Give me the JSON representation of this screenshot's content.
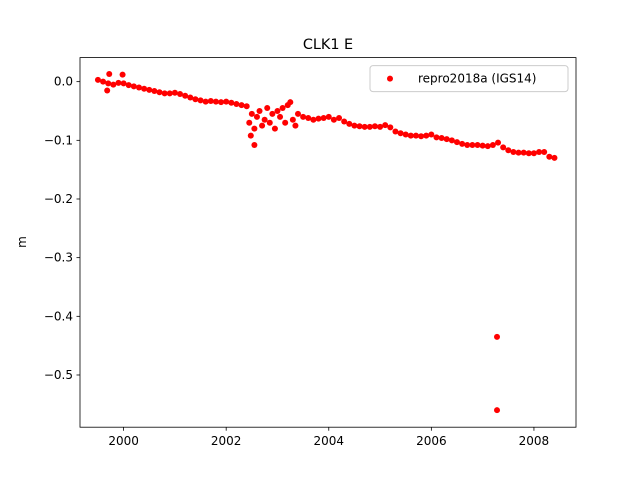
{
  "chart_data": {
    "type": "scatter",
    "title": "CLK1 E",
    "y_label": "m",
    "xlim": [
      1999.15,
      2008.82
    ],
    "ylim": [
      -0.589,
      0.041
    ],
    "xticks": [
      2000,
      2002,
      2004,
      2006,
      2008
    ],
    "yticks": [
      {
        "value": 0.0,
        "label": "0.0"
      },
      {
        "value": -0.1,
        "label": "−0.1"
      },
      {
        "value": -0.2,
        "label": "−0.2"
      },
      {
        "value": -0.3,
        "label": "−0.3"
      },
      {
        "value": -0.4,
        "label": "−0.4"
      },
      {
        "value": -0.5,
        "label": "−0.5"
      }
    ],
    "legend": "upper right",
    "grid": false,
    "series": [
      {
        "name": "repro2018a (IGS14)",
        "color": "#ff0000",
        "x": [
          1999.5,
          1999.6,
          1999.7,
          1999.8,
          1999.9,
          2000.0,
          2000.1,
          2000.2,
          2000.3,
          2000.4,
          2000.5,
          2000.6,
          2000.7,
          2000.8,
          2000.9,
          2001.0,
          2001.1,
          2001.2,
          2001.3,
          2001.4,
          2001.5,
          2001.6,
          2001.7,
          2001.8,
          2001.9,
          2002.0,
          2002.1,
          2002.2,
          2002.3,
          2002.4,
          2002.45,
          2002.5,
          2002.55,
          2002.6,
          2002.65,
          2002.7,
          2002.75,
          2002.8,
          2002.85,
          2002.9,
          2002.95,
          2003.0,
          2003.05,
          2003.1,
          2003.15,
          2003.2,
          2003.25,
          2003.3,
          2003.35,
          2003.4,
          2003.5,
          2003.6,
          2003.7,
          2003.8,
          2003.9,
          2004.0,
          2004.1,
          2004.2,
          2004.3,
          2004.4,
          2004.5,
          2004.6,
          2004.7,
          2004.8,
          2004.9,
          2005.0,
          2005.1,
          2005.2,
          2005.3,
          2005.4,
          2005.5,
          2005.6,
          2005.7,
          2005.8,
          2005.9,
          2006.0,
          2006.1,
          2006.2,
          2006.3,
          2006.4,
          2006.5,
          2006.6,
          2006.7,
          2006.8,
          2006.9,
          2007.0,
          2007.1,
          2007.2,
          2007.3,
          2007.4,
          2007.5,
          2007.6,
          2007.7,
          2007.8,
          2007.9,
          2008.0,
          2008.1,
          2008.2,
          2008.3,
          2008.4,
          1999.72,
          1999.98,
          1999.68,
          2002.55,
          2002.48,
          2007.28,
          2007.28
        ],
        "values": [
          0.003,
          0.0,
          -0.003,
          -0.005,
          -0.002,
          -0.003,
          -0.006,
          -0.008,
          -0.01,
          -0.012,
          -0.014,
          -0.016,
          -0.018,
          -0.02,
          -0.02,
          -0.019,
          -0.021,
          -0.024,
          -0.027,
          -0.03,
          -0.032,
          -0.034,
          -0.033,
          -0.034,
          -0.035,
          -0.034,
          -0.036,
          -0.038,
          -0.04,
          -0.042,
          -0.07,
          -0.055,
          -0.08,
          -0.06,
          -0.05,
          -0.075,
          -0.065,
          -0.045,
          -0.07,
          -0.055,
          -0.08,
          -0.05,
          -0.06,
          -0.045,
          -0.07,
          -0.04,
          -0.035,
          -0.065,
          -0.075,
          -0.055,
          -0.06,
          -0.062,
          -0.065,
          -0.063,
          -0.062,
          -0.06,
          -0.065,
          -0.062,
          -0.068,
          -0.072,
          -0.075,
          -0.076,
          -0.077,
          -0.077,
          -0.076,
          -0.077,
          -0.074,
          -0.078,
          -0.085,
          -0.088,
          -0.09,
          -0.092,
          -0.092,
          -0.093,
          -0.092,
          -0.09,
          -0.095,
          -0.096,
          -0.098,
          -0.1,
          -0.103,
          -0.106,
          -0.108,
          -0.108,
          -0.108,
          -0.109,
          -0.11,
          -0.108,
          -0.104,
          -0.112,
          -0.117,
          -0.12,
          -0.121,
          -0.121,
          -0.122,
          -0.122,
          -0.12,
          -0.12,
          -0.128,
          -0.13,
          0.013,
          0.012,
          -0.015,
          -0.108,
          -0.092,
          -0.435,
          -0.56
        ]
      }
    ]
  }
}
